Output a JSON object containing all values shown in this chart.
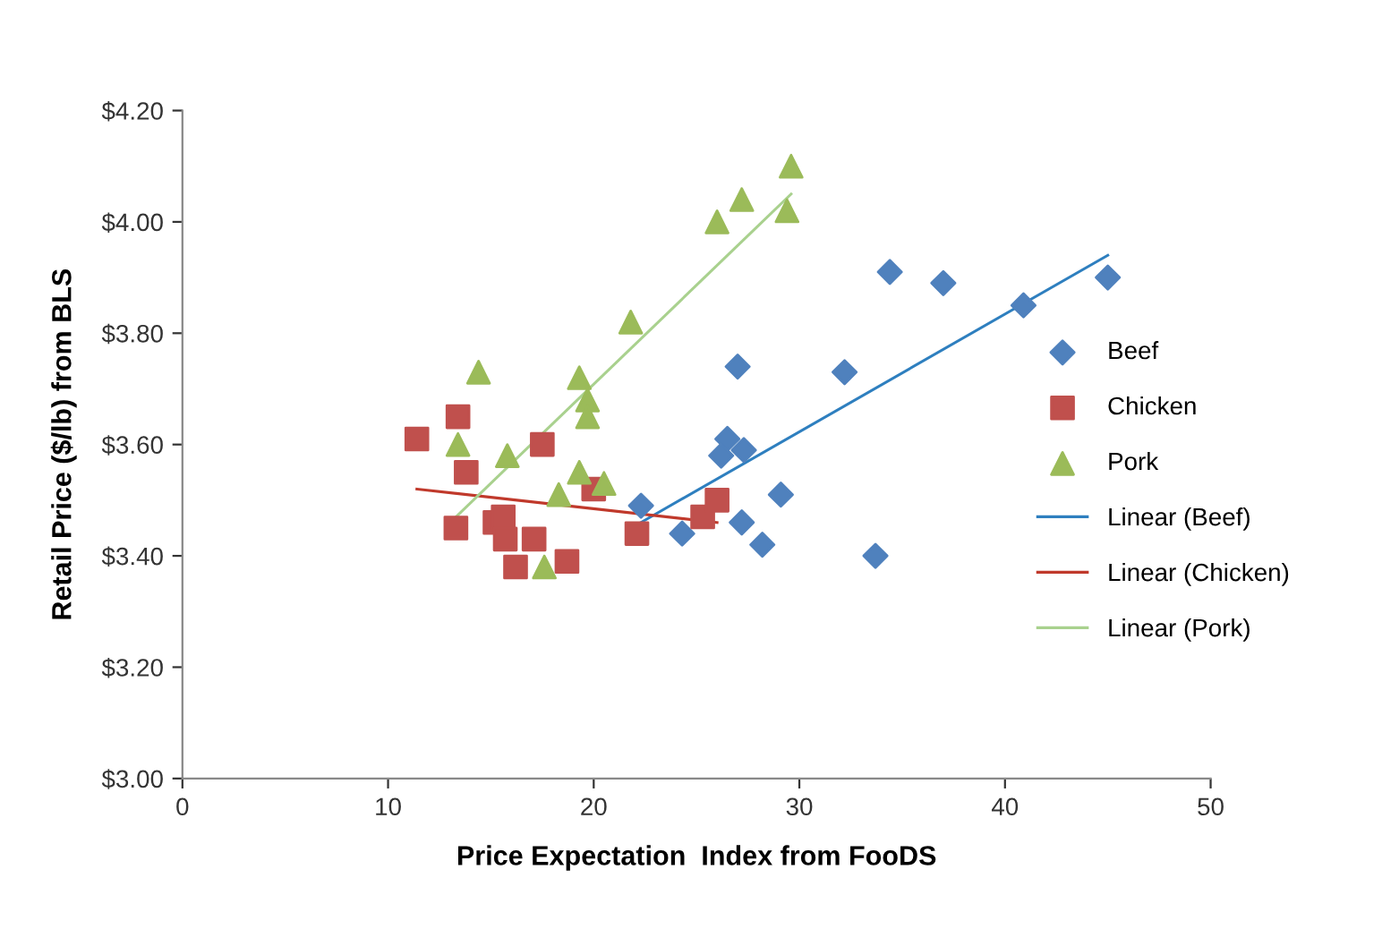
{
  "chart_data": {
    "type": "scatter",
    "xlabel": "Price Expectation  Index from FooDS",
    "ylabel": "Retail Price ($/lb) from BLS",
    "xlim": [
      0,
      50
    ],
    "xticks": [
      0,
      10,
      20,
      30,
      40,
      50
    ],
    "ylim": [
      3.0,
      4.2
    ],
    "yticks": [
      {
        "value": 3.0,
        "label": "$3.00"
      },
      {
        "value": 3.2,
        "label": "$3.20"
      },
      {
        "value": 3.4,
        "label": "$3.40"
      },
      {
        "value": 3.6,
        "label": "$3.60"
      },
      {
        "value": 3.8,
        "label": "$3.80"
      },
      {
        "value": 4.0,
        "label": "$4.00"
      },
      {
        "value": 4.2,
        "label": "$4.20"
      }
    ],
    "grid": false,
    "legend": "right",
    "series": [
      {
        "name": "Beef",
        "marker": "diamond",
        "color": "#4f81bd",
        "x": [
          22.3,
          24.3,
          26.5,
          26.2,
          27.3,
          27.0,
          27.2,
          28.2,
          29.1,
          32.2,
          34.4,
          37.0,
          40.9,
          33.7,
          45.0
        ],
        "values": [
          3.49,
          3.44,
          3.61,
          3.58,
          3.59,
          3.74,
          3.46,
          3.42,
          3.51,
          3.73,
          3.91,
          3.89,
          3.85,
          3.4,
          3.9
        ]
      },
      {
        "name": "Chicken",
        "marker": "square",
        "color": "#c0504d",
        "x": [
          11.4,
          13.4,
          13.8,
          13.3,
          15.2,
          15.6,
          15.7,
          16.2,
          17.1,
          17.5,
          18.7,
          20.0,
          22.1,
          25.3,
          26.0
        ],
        "values": [
          3.61,
          3.65,
          3.55,
          3.45,
          3.46,
          3.47,
          3.43,
          3.38,
          3.43,
          3.6,
          3.39,
          3.52,
          3.44,
          3.47,
          3.5
        ]
      },
      {
        "name": "Pork",
        "marker": "triangle",
        "color": "#9bbb59",
        "x": [
          14.4,
          13.4,
          15.8,
          17.6,
          18.3,
          19.3,
          19.7,
          19.7,
          19.3,
          20.5,
          21.8,
          26.0,
          27.2,
          29.6,
          29.4
        ],
        "values": [
          3.73,
          3.6,
          3.58,
          3.38,
          3.51,
          3.72,
          3.68,
          3.65,
          3.55,
          3.53,
          3.82,
          4.0,
          4.04,
          4.1,
          4.02
        ]
      },
      {
        "name": "Linear (Beef)",
        "type": "line",
        "marker": "none",
        "color": "#2e7fbf",
        "x": [
          22.3,
          45.0
        ],
        "values": [
          3.46,
          3.94
        ]
      },
      {
        "name": "Linear (Chicken)",
        "type": "line",
        "marker": "none",
        "color": "#c0392b",
        "x": [
          11.4,
          26.0
        ],
        "values": [
          3.52,
          3.46
        ]
      },
      {
        "name": "Linear (Pork)",
        "type": "line",
        "marker": "none",
        "color": "#a9d18e",
        "x": [
          13.3,
          29.6
        ],
        "values": [
          3.47,
          4.05
        ]
      }
    ]
  }
}
